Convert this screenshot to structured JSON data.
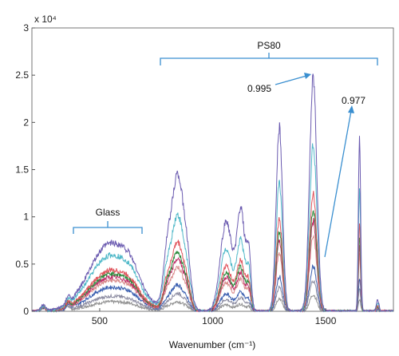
{
  "chart_data": {
    "type": "line",
    "title": "",
    "xlabel": "Wavenumber (cm⁻¹)",
    "ylabel": "",
    "xlim": [
      200,
      1800
    ],
    "ylim": [
      0,
      30000
    ],
    "y_exponent_label": "x 10⁴",
    "x_ticks": [
      500,
      1000,
      1500
    ],
    "x_tick_labels": [
      "500",
      "1000",
      "1500"
    ],
    "y_ticks": [
      0,
      5000,
      10000,
      15000,
      20000,
      25000,
      30000
    ],
    "y_tick_labels": [
      "0",
      "0.5",
      "1",
      "1.5",
      "2",
      "2.5",
      "3"
    ],
    "grid": false,
    "legend": "none",
    "peaks": [
      {
        "center": 550,
        "width": 95,
        "amp": 7200
      },
      {
        "center": 640,
        "width": 35,
        "amp": 1200
      },
      {
        "center": 845,
        "width": 30,
        "amp": 14500
      },
      {
        "center": 795,
        "width": 16,
        "amp": 3500
      },
      {
        "center": 890,
        "width": 14,
        "amp": 2500
      },
      {
        "center": 1060,
        "width": 26,
        "amp": 9500
      },
      {
        "center": 1125,
        "width": 18,
        "amp": 10500
      },
      {
        "center": 1160,
        "width": 10,
        "amp": 5500
      },
      {
        "center": 1295,
        "width": 14,
        "amp": 19500
      },
      {
        "center": 1445,
        "width": 16,
        "amp": 25000
      },
      {
        "center": 1650,
        "width": 5,
        "amp": 18500
      },
      {
        "center": 1730,
        "width": 6,
        "amp": 1200
      },
      {
        "center": 250,
        "width": 10,
        "amp": 600
      },
      {
        "center": 360,
        "width": 8,
        "amp": 700
      }
    ],
    "series": [
      {
        "color": "#6b5bb0",
        "glass": 1.0,
        "ps80": 1.0
      },
      {
        "color": "#4fb8c8",
        "glass": 0.82,
        "ps80": 0.7
      },
      {
        "color": "#e0545c",
        "glass": 0.6,
        "ps80": 0.5
      },
      {
        "color": "#2e8b3e",
        "glass": 0.55,
        "ps80": 0.43
      },
      {
        "color": "#c0306a",
        "glass": 0.5,
        "ps80": 0.38
      },
      {
        "color": "#d98a8a",
        "glass": 0.45,
        "ps80": 0.32
      },
      {
        "color": "#3a5fb0",
        "glass": 0.35,
        "ps80": 0.19
      },
      {
        "color": "#8a8aa0",
        "glass": 0.22,
        "ps80": 0.13
      },
      {
        "color": "#909090",
        "glass": 0.14,
        "ps80": 0.07
      }
    ],
    "annotations": {
      "glass_label": "Glass",
      "ps80_label": "PS80",
      "arrow1_label": "0.995",
      "arrow2_label": "0.977"
    }
  }
}
